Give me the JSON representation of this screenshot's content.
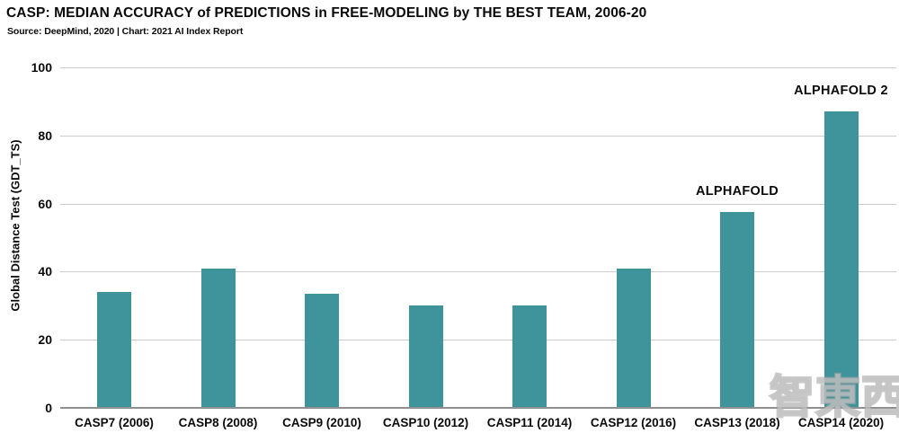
{
  "chart_data": {
    "type": "bar",
    "title": "CASP: MEDIAN ACCURACY of PREDICTIONS in FREE-MODELING by THE BEST TEAM, 2006-20",
    "subtitle": "Source: DeepMind, 2020 | Chart: 2021 AI Index Report",
    "ylabel": "Global Distance Test (GDT_TS)",
    "xlabel": "",
    "categories": [
      "CASP7 (2006)",
      "CASP8 (2008)",
      "CASP9 (2010)",
      "CASP10 (2012)",
      "CASP11 (2014)",
      "CASP12 (2016)",
      "CASP13 (2018)",
      "CASP14 (2020)"
    ],
    "values": [
      34,
      41,
      33.5,
      30,
      30,
      41,
      57.5,
      87
    ],
    "yticks": [
      0,
      20,
      40,
      60,
      80,
      100
    ],
    "ylim": [
      0,
      100
    ],
    "grid": "horizontal",
    "legend": "none",
    "bar_color": "#3f939b",
    "annotations": [
      {
        "category_index": 6,
        "label": "ALPHAFOLD"
      },
      {
        "category_index": 7,
        "label": "ALPHAFOLD 2"
      }
    ],
    "watermark": "智東西"
  }
}
